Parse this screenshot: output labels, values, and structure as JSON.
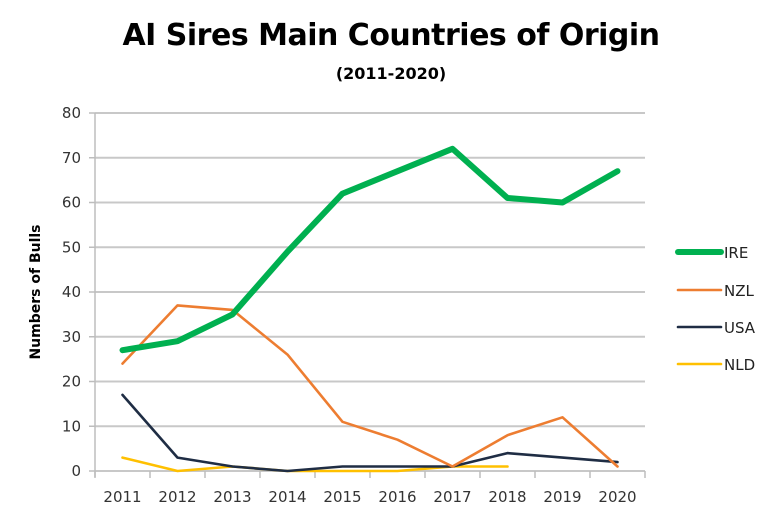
{
  "chart_data": {
    "type": "line",
    "title": "AI Sires Main Countries of Origin",
    "subtitle": "(2011-2020)",
    "xlabel": "",
    "ylabel": "Numbers of Bulls",
    "ylim": [
      0,
      80
    ],
    "yticks": [
      "0",
      "10",
      "20",
      "30",
      "40",
      "50",
      "60",
      "70",
      "80"
    ],
    "categories": [
      "2011",
      "2012",
      "2013",
      "2014",
      "2015",
      "2016",
      "2017",
      "2018",
      "2019",
      "2020"
    ],
    "grid": true,
    "legend_position": "right",
    "series": [
      {
        "name": "IRE",
        "color": "#00b050",
        "width": "thick",
        "values": [
          27,
          29,
          35,
          49,
          62,
          67,
          72,
          61,
          60,
          67
        ]
      },
      {
        "name": "NZL",
        "color": "#ed7d31",
        "width": "thin",
        "values": [
          24,
          37,
          36,
          26,
          11,
          7,
          1,
          8,
          12,
          1
        ]
      },
      {
        "name": "USA",
        "color": "#1f2d44",
        "width": "thin",
        "values": [
          17,
          3,
          1,
          0,
          1,
          1,
          1,
          4,
          3,
          2
        ]
      },
      {
        "name": "NLD",
        "color": "#ffc000",
        "width": "thin",
        "values": [
          3,
          0,
          1,
          0,
          0,
          0,
          1,
          1,
          null,
          null
        ]
      }
    ]
  }
}
